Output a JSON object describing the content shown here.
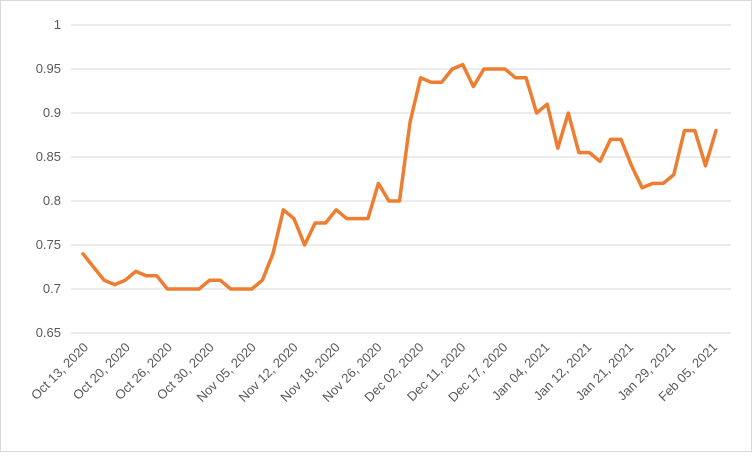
{
  "chart_data": {
    "type": "line",
    "title": "",
    "xlabel": "",
    "ylabel": "",
    "ylim": [
      0.65,
      1
    ],
    "yticks": [
      "0.65",
      "0.7",
      "0.75",
      "0.8",
      "0.85",
      "0.9",
      "0.95",
      "1"
    ],
    "grid": true,
    "legend": "none",
    "colors": {
      "series": "#ed7d31",
      "grid": "#d9d9d9",
      "text": "#595959"
    },
    "xticks": [
      "Oct 13, 2020",
      "Oct 20, 2020",
      "Oct 26, 2020",
      "Oct 30, 2020",
      "Nov 05, 2020",
      "Nov 12, 2020",
      "Nov 18, 2020",
      "Nov 26, 2020",
      "Dec 02, 2020",
      "Dec 11, 2020",
      "Dec 17, 2020",
      "Jan 04, 2021",
      "Jan 12, 2021",
      "Jan 21, 2021",
      "Jan 29, 2021",
      "Feb 05, 2021"
    ],
    "series": [
      {
        "values": [
          0.74,
          0.725,
          0.71,
          0.705,
          0.71,
          0.72,
          0.715,
          0.715,
          0.7,
          0.7,
          0.7,
          0.7,
          0.71,
          0.71,
          0.7,
          0.7,
          0.7,
          0.71,
          0.74,
          0.79,
          0.78,
          0.75,
          0.775,
          0.775,
          0.79,
          0.78,
          0.78,
          0.78,
          0.82,
          0.8,
          0.8,
          0.89,
          0.94,
          0.935,
          0.935,
          0.95,
          0.955,
          0.93,
          0.95,
          0.95,
          0.95,
          0.94,
          0.94,
          0.9,
          0.91,
          0.86,
          0.9,
          0.855,
          0.855,
          0.845,
          0.87,
          0.87,
          0.84,
          0.815,
          0.82,
          0.82,
          0.83,
          0.88,
          0.88,
          0.84,
          0.88
        ]
      }
    ]
  }
}
